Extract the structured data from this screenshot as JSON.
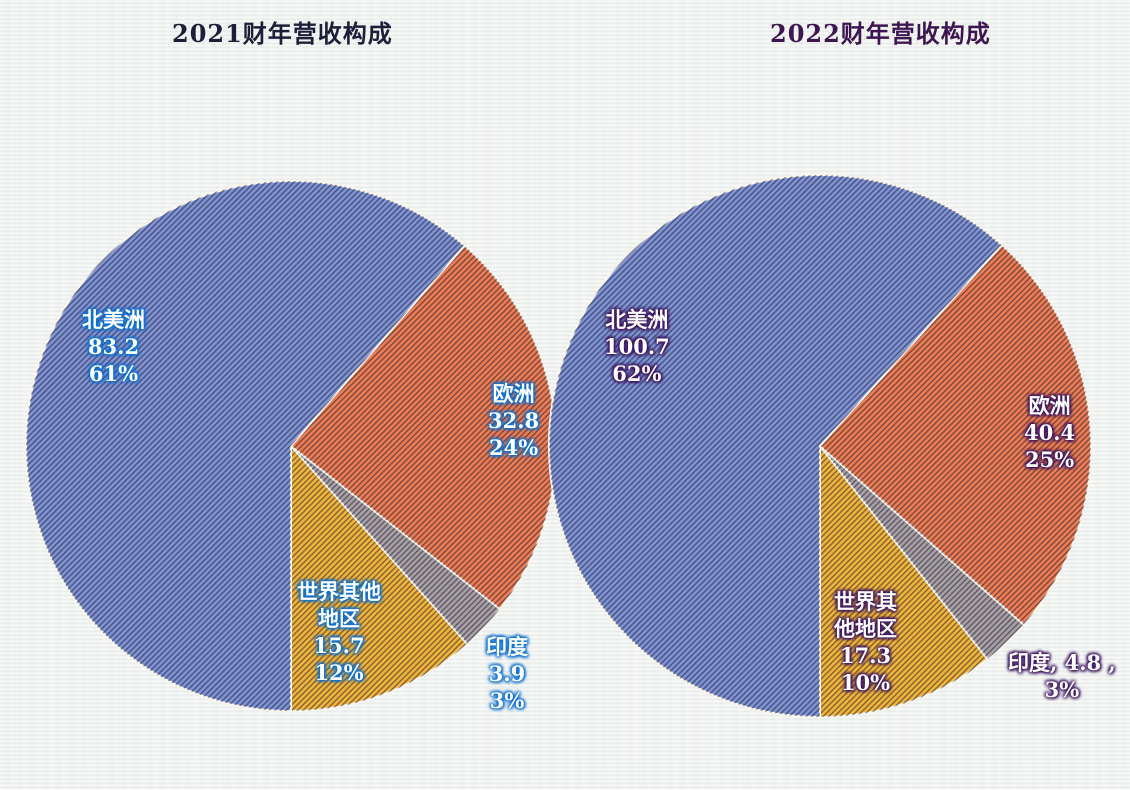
{
  "chart_data": [
    {
      "type": "pie",
      "title": "2021财年营收构成",
      "categories": [
        "北美洲",
        "欧洲",
        "印度",
        "世界其他地区"
      ],
      "values": [
        83.2,
        32.8,
        3.9,
        15.7
      ],
      "percentages": [
        "61%",
        "24%",
        "3%",
        "12%"
      ],
      "colors": [
        "#7f93d2",
        "#ec7d52",
        "#a8a0a2",
        "#f1b43a"
      ],
      "title_color": "#1b1f3a",
      "label_glow_color": "#0a6fd0"
    },
    {
      "type": "pie",
      "title": "2022财年营收构成",
      "categories": [
        "北美洲",
        "欧洲",
        "印度",
        "世界其他地区"
      ],
      "values": [
        100.7,
        40.4,
        4.8,
        17.3
      ],
      "percentages": [
        "62%",
        "25%",
        "3%",
        "10%"
      ],
      "colors": [
        "#7f93d2",
        "#ec7d52",
        "#a8a0a2",
        "#f1b43a"
      ],
      "title_color": "#3d1550",
      "label_glow_color": "#3c1460"
    }
  ],
  "labels": {
    "c1": {
      "na": {
        "name": "北美洲",
        "value": "83.2",
        "pct": "61%"
      },
      "eu": {
        "name": "欧洲",
        "value": "32.8",
        "pct": "24%"
      },
      "in": {
        "name": "印度",
        "value": "3.9",
        "pct": "3%"
      },
      "row": {
        "name1": "世界其他",
        "name2": "地区",
        "value": "15.7",
        "pct": "12%"
      }
    },
    "c2": {
      "na": {
        "name": "北美洲",
        "value": "100.7",
        "pct": "62%"
      },
      "eu": {
        "name": "欧洲",
        "value": "40.4",
        "pct": "25%"
      },
      "in": {
        "line1": "印度, 4.8 ,",
        "pct": "3%"
      },
      "row": {
        "name1": "世界其",
        "name2": "他地区",
        "value": "17.3",
        "pct": "10%"
      }
    }
  }
}
